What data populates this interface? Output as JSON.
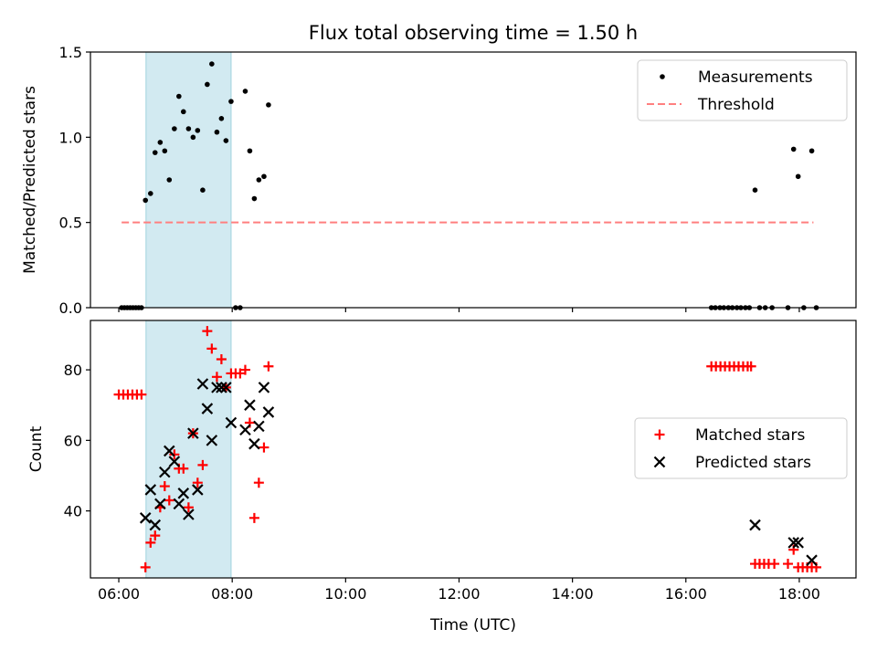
{
  "chart_data": [
    {
      "type": "scatter",
      "title": "Flux total observing time = 1.50 h",
      "xlabel": "",
      "ylabel": "Matched/Predicted stars",
      "xlim": [
        5.5,
        19.0
      ],
      "ylim": [
        0,
        1.5
      ],
      "xticks": [
        6,
        8,
        10,
        12,
        14,
        16,
        18
      ],
      "yticks": [
        {
          "value": 0.0,
          "label": "0.0"
        },
        {
          "value": 0.5,
          "label": "0.5"
        },
        {
          "value": 1.0,
          "label": "1.0"
        },
        {
          "value": 1.5,
          "label": "1.5"
        }
      ],
      "grid": false,
      "legend": "top-right",
      "highlight_span": {
        "x": [
          6.48,
          7.98
        ],
        "color": "#add8e6"
      },
      "series": [
        {
          "name": "Measurements",
          "marker": "dot",
          "color": "#000000",
          "points": [
            [
              6.05,
              0
            ],
            [
              6.1,
              0
            ],
            [
              6.15,
              0
            ],
            [
              6.2,
              0
            ],
            [
              6.25,
              0
            ],
            [
              6.3,
              0
            ],
            [
              6.35,
              0
            ],
            [
              6.4,
              0
            ],
            [
              6.47,
              0.63
            ],
            [
              6.56,
              0.67
            ],
            [
              6.64,
              0.91
            ],
            [
              6.73,
              0.97
            ],
            [
              6.81,
              0.92
            ],
            [
              6.89,
              0.75
            ],
            [
              6.98,
              1.05
            ],
            [
              7.06,
              1.24
            ],
            [
              7.14,
              1.15
            ],
            [
              7.23,
              1.05
            ],
            [
              7.31,
              1.0
            ],
            [
              7.39,
              1.04
            ],
            [
              7.48,
              0.69
            ],
            [
              7.56,
              1.31
            ],
            [
              7.64,
              1.43
            ],
            [
              7.73,
              1.03
            ],
            [
              7.81,
              1.11
            ],
            [
              7.89,
              0.98
            ],
            [
              7.98,
              1.21
            ],
            [
              8.06,
              0
            ],
            [
              8.14,
              0
            ],
            [
              8.23,
              1.27
            ],
            [
              8.31,
              0.92
            ],
            [
              8.39,
              0.64
            ],
            [
              8.47,
              0.75
            ],
            [
              8.56,
              0.77
            ],
            [
              8.64,
              1.19
            ],
            [
              16.45,
              0
            ],
            [
              16.52,
              0
            ],
            [
              16.6,
              0
            ],
            [
              16.67,
              0
            ],
            [
              16.75,
              0
            ],
            [
              16.82,
              0
            ],
            [
              16.9,
              0
            ],
            [
              16.97,
              0
            ],
            [
              17.05,
              0
            ],
            [
              17.12,
              0
            ],
            [
              17.22,
              0.69
            ],
            [
              17.3,
              0
            ],
            [
              17.4,
              0
            ],
            [
              17.52,
              0
            ],
            [
              17.8,
              0
            ],
            [
              17.9,
              0.93
            ],
            [
              17.98,
              0.77
            ],
            [
              18.08,
              0
            ],
            [
              18.22,
              0.92
            ],
            [
              18.3,
              0
            ]
          ]
        },
        {
          "name": "Threshold",
          "marker": "dashed-line",
          "color": "#ff7f7f",
          "line": [
            [
              6.05,
              0.5
            ],
            [
              18.25,
              0.5
            ]
          ]
        }
      ]
    },
    {
      "type": "scatter",
      "title": "",
      "xlabel": "Time (UTC)",
      "ylabel": "Count",
      "xlim": [
        5.5,
        19.0
      ],
      "ylim": [
        21,
        94
      ],
      "xticks": [
        6,
        8,
        10,
        12,
        14,
        16,
        18
      ],
      "xtick_labels": [
        "06:00",
        "08:00",
        "10:00",
        "12:00",
        "14:00",
        "16:00",
        "18:00"
      ],
      "yticks": [
        {
          "value": 40,
          "label": "40"
        },
        {
          "value": 60,
          "label": "60"
        },
        {
          "value": 80,
          "label": "80"
        }
      ],
      "grid": false,
      "legend": "center-right",
      "highlight_span": {
        "x": [
          6.48,
          7.98
        ],
        "color": "#add8e6"
      },
      "series": [
        {
          "name": "Matched stars",
          "marker": "plus",
          "color": "#ff0000",
          "points": [
            [
              6.0,
              73
            ],
            [
              6.08,
              73
            ],
            [
              6.16,
              73
            ],
            [
              6.24,
              73
            ],
            [
              6.32,
              73
            ],
            [
              6.4,
              73
            ],
            [
              6.47,
              24
            ],
            [
              6.56,
              31
            ],
            [
              6.64,
              33
            ],
            [
              6.73,
              41
            ],
            [
              6.81,
              47
            ],
            [
              6.89,
              43
            ],
            [
              6.98,
              56
            ],
            [
              7.06,
              52
            ],
            [
              7.14,
              52
            ],
            [
              7.23,
              41
            ],
            [
              7.31,
              62
            ],
            [
              7.39,
              48
            ],
            [
              7.48,
              53
            ],
            [
              7.56,
              91
            ],
            [
              7.64,
              86
            ],
            [
              7.73,
              78
            ],
            [
              7.81,
              83
            ],
            [
              7.89,
              75
            ],
            [
              7.98,
              79
            ],
            [
              8.06,
              79
            ],
            [
              8.14,
              79
            ],
            [
              8.23,
              80
            ],
            [
              8.31,
              65
            ],
            [
              8.39,
              38
            ],
            [
              8.47,
              48
            ],
            [
              8.56,
              58
            ],
            [
              8.64,
              81
            ],
            [
              16.45,
              81
            ],
            [
              16.53,
              81
            ],
            [
              16.61,
              81
            ],
            [
              16.69,
              81
            ],
            [
              16.77,
              81
            ],
            [
              16.85,
              81
            ],
            [
              16.93,
              81
            ],
            [
              17.01,
              81
            ],
            [
              17.09,
              81
            ],
            [
              17.15,
              81
            ],
            [
              17.22,
              25
            ],
            [
              17.3,
              25
            ],
            [
              17.38,
              25
            ],
            [
              17.46,
              25
            ],
            [
              17.56,
              25
            ],
            [
              17.8,
              25
            ],
            [
              17.9,
              29
            ],
            [
              17.98,
              24
            ],
            [
              18.06,
              24
            ],
            [
              18.14,
              24
            ],
            [
              18.22,
              24
            ],
            [
              18.3,
              24
            ]
          ]
        },
        {
          "name": "Predicted stars",
          "marker": "x",
          "color": "#000000",
          "points": [
            [
              6.47,
              38
            ],
            [
              6.56,
              46
            ],
            [
              6.64,
              36
            ],
            [
              6.73,
              42
            ],
            [
              6.81,
              51
            ],
            [
              6.89,
              57
            ],
            [
              6.98,
              54
            ],
            [
              7.06,
              42
            ],
            [
              7.14,
              45
            ],
            [
              7.23,
              39
            ],
            [
              7.31,
              62
            ],
            [
              7.39,
              46
            ],
            [
              7.48,
              76
            ],
            [
              7.56,
              69
            ],
            [
              7.64,
              60
            ],
            [
              7.73,
              75
            ],
            [
              7.81,
              75
            ],
            [
              7.89,
              75
            ],
            [
              7.98,
              65
            ],
            [
              8.23,
              63
            ],
            [
              8.31,
              70
            ],
            [
              8.39,
              59
            ],
            [
              8.47,
              64
            ],
            [
              8.56,
              75
            ],
            [
              8.64,
              68
            ],
            [
              17.22,
              36
            ],
            [
              17.9,
              31
            ],
            [
              17.98,
              31
            ],
            [
              18.22,
              26
            ]
          ]
        }
      ]
    }
  ]
}
